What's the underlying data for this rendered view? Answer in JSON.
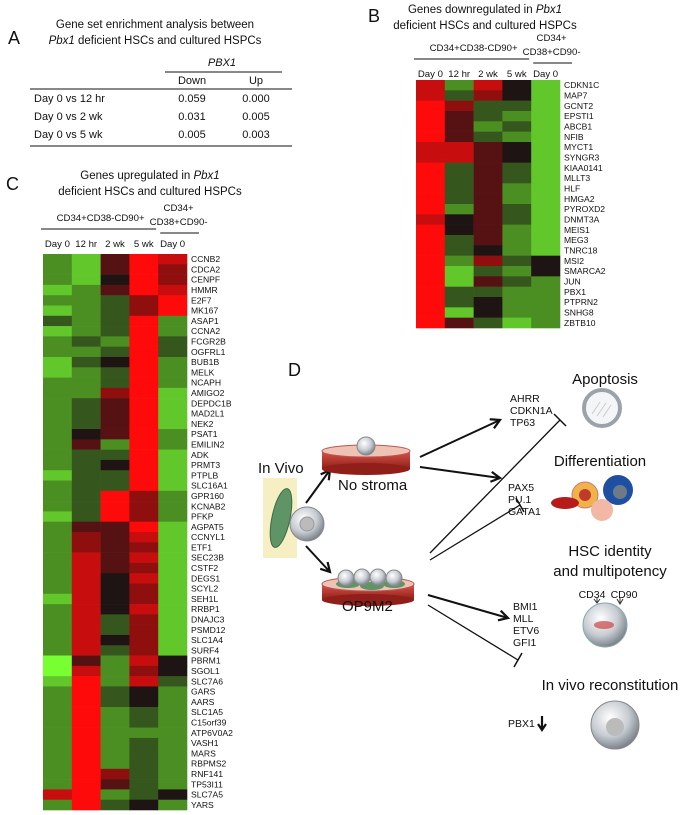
{
  "panel_a": {
    "label": "A",
    "title_line1": "Gene set enrichment analysis between",
    "title_italic": "Pbx1",
    "title_rest": "deficient HSCs and cultured HSPCs",
    "group_header": "PBX1",
    "columns": [
      "Down",
      "Up"
    ],
    "rows": [
      {
        "label": "Day 0 vs 12 hr",
        "values": [
          "0.059",
          "0.000"
        ]
      },
      {
        "label": "Day 0 vs 2 wk",
        "values": [
          "0.031",
          "0.005"
        ]
      },
      {
        "label": "Day 0 vs 5 wk",
        "values": [
          "0.005",
          "0.003"
        ]
      }
    ]
  },
  "panel_b": {
    "label": "B",
    "title_line1_prefix": "Genes downregulated in",
    "title_italic": "Pbx1",
    "title_line2": "deficient HSCs and cultured HSPCs",
    "group1": "CD34+CD38-CD90+",
    "group2_line1": "CD34+",
    "group2_line2": "CD38+CD90-",
    "columns": [
      "Day 0",
      "12 hr",
      "2 wk",
      "5 wk",
      "Day 0"
    ],
    "genes": [
      "CDKN1C",
      "MAP7",
      "GCNT2",
      "EPSTI1",
      "ABCB1",
      "NFIB",
      "MYCT1",
      "SYNGR3",
      "KIAA0141",
      "MLLT3",
      "HLF",
      "HMGA2",
      "PYROXD2",
      "DNMT3A",
      "MEIS1",
      "MEG3",
      "TNRC18",
      "MSI2",
      "SMARCA2",
      "JUN",
      "PBX1",
      "PTPRN2",
      "SNHG8",
      "ZBTB10"
    ],
    "values": [
      [
        1.5,
        -1,
        1.5,
        0,
        -1.5
      ],
      [
        1.5,
        -0.5,
        1,
        0,
        -1.5
      ],
      [
        2,
        1,
        -0.5,
        -0.5,
        -1.5
      ],
      [
        2,
        0.5,
        -0.5,
        -1,
        -1.5
      ],
      [
        2,
        0.5,
        -1,
        -0.5,
        -1.5
      ],
      [
        2,
        0.5,
        -0.5,
        -1,
        -1.5
      ],
      [
        1.5,
        1.5,
        0.5,
        0,
        -1.5
      ],
      [
        1.5,
        1.5,
        0.5,
        0,
        -1.5
      ],
      [
        2,
        -0.5,
        0.5,
        -0.5,
        -1.5
      ],
      [
        2,
        -0.5,
        0.5,
        -0.5,
        -1.5
      ],
      [
        2,
        -0.5,
        0.5,
        -1,
        -1.5
      ],
      [
        2,
        -0.5,
        0.5,
        -1,
        -1.5
      ],
      [
        2,
        -1,
        0.5,
        -0.5,
        -1.5
      ],
      [
        1.5,
        0,
        0.5,
        -0.5,
        -1.5
      ],
      [
        2,
        0,
        0.5,
        -1,
        -1.5
      ],
      [
        2,
        -0.5,
        0.5,
        -1,
        -1.5
      ],
      [
        2,
        -0.5,
        0,
        -1,
        -1.5
      ],
      [
        2,
        -1,
        1,
        -0.5,
        0
      ],
      [
        2,
        -1.5,
        -0.5,
        -1,
        0
      ],
      [
        2,
        -1.5,
        0.5,
        -0.5,
        -1
      ],
      [
        2,
        -0.5,
        -0.5,
        -1,
        -1
      ],
      [
        2,
        -0.5,
        0,
        -1,
        -1
      ],
      [
        2,
        -1.5,
        0,
        -1,
        -1
      ],
      [
        2,
        0.5,
        -0.5,
        -1.5,
        -1
      ]
    ]
  },
  "panel_c": {
    "label": "C",
    "title_line1_prefix": "Genes upregulated in",
    "title_italic": "Pbx1",
    "title_line2": "deficient HSCs and cultured HSPCs",
    "group1": "CD34+CD38-CD90+",
    "group2_line1": "CD34+",
    "group2_line2": "CD38+CD90-",
    "columns": [
      "Day 0",
      "12 hr",
      "2 wk",
      "5 wk",
      "Day 0"
    ],
    "genes": [
      "CCNB2",
      "CDCA2",
      "CENPF",
      "HMMR",
      "E2F7",
      "MK167",
      "ASAP1",
      "CCNA2",
      "FCGR2B",
      "OGFRL1",
      "BUB1B",
      "MELK",
      "NCAPH",
      "AMIGO2",
      "DEPDC1B",
      "MAD2L1",
      "NEK2",
      "PSAT1",
      "EMILIN2",
      "ADK",
      "PRMT3",
      "PTPLB",
      "SLC16A1",
      "GPR160",
      "KCNAB2",
      "PFKP",
      "AGPAT5",
      "CCNYL1",
      "ETF1",
      "SEC23B",
      "CSTF2",
      "DEGS1",
      "SCYL2",
      "SEH1L",
      "RRBP1",
      "DNAJC3",
      "PSMD12",
      "SLC1A4",
      "SURF4",
      "PBRM1",
      "SGOL1",
      "SLC7A6",
      "GARS",
      "AARS",
      "SLC1A5",
      "C15orf39",
      "ATP6V0A2",
      "VASH1",
      "MARS",
      "RBPMS2",
      "RNF141",
      "TP53I11",
      "SLC7A5",
      "YARS"
    ],
    "values": [
      [
        -1,
        -1.5,
        0.5,
        2,
        1.5
      ],
      [
        -1,
        -1.5,
        0.5,
        2,
        1
      ],
      [
        -1,
        -1.5,
        0,
        2,
        1
      ],
      [
        -1.5,
        -1,
        0.5,
        2,
        1.5
      ],
      [
        -1,
        -1,
        -0.5,
        1,
        2
      ],
      [
        -1.5,
        -1,
        -0.5,
        1,
        2
      ],
      [
        -0.5,
        -1,
        -0.5,
        2,
        -1
      ],
      [
        -1.5,
        -1,
        -0.5,
        2,
        -1
      ],
      [
        -1,
        -0.5,
        -1,
        2,
        -0.5
      ],
      [
        -1,
        -1,
        -0.5,
        2,
        -0.5
      ],
      [
        -1.5,
        -0.5,
        0,
        2,
        -1
      ],
      [
        -1.5,
        -1,
        -0.5,
        2,
        -1
      ],
      [
        -1,
        -1,
        -0.5,
        2,
        -1
      ],
      [
        -1,
        -1,
        1,
        2,
        -1.5
      ],
      [
        -1,
        -0.5,
        0.5,
        2,
        -1.5
      ],
      [
        -1,
        -0.5,
        0.5,
        2,
        -1.5
      ],
      [
        -1,
        -0.5,
        0.5,
        2,
        -1.5
      ],
      [
        -1,
        0,
        0.5,
        2,
        -1
      ],
      [
        -1,
        0.5,
        -1,
        2,
        -1
      ],
      [
        -1,
        -0.5,
        -0.5,
        2,
        -1.5
      ],
      [
        -1,
        -0.5,
        0,
        2,
        -1.5
      ],
      [
        -1.5,
        -0.5,
        -0.5,
        2,
        -1.5
      ],
      [
        -1,
        -0.5,
        -0.5,
        2,
        -1.5
      ],
      [
        -1,
        -0.5,
        2,
        1,
        -1
      ],
      [
        -1,
        -0.5,
        2,
        1,
        -1
      ],
      [
        -1.5,
        -0.5,
        2,
        1,
        -1
      ],
      [
        -1,
        0.5,
        0.5,
        2,
        -1.5
      ],
      [
        -1,
        1,
        0.5,
        1.5,
        -1.5
      ],
      [
        -1,
        1,
        0.5,
        1,
        -1.5
      ],
      [
        -1,
        1.5,
        0.5,
        1.5,
        -1.5
      ],
      [
        -1,
        1.5,
        0.5,
        1,
        -1.5
      ],
      [
        -1,
        1.5,
        0,
        1.5,
        -1.5
      ],
      [
        -1,
        1.5,
        0,
        1,
        -1.5
      ],
      [
        -1.5,
        1.5,
        0,
        1,
        -1.5
      ],
      [
        -1,
        1.5,
        0,
        1.5,
        -1.5
      ],
      [
        -1,
        1.5,
        -0.5,
        1,
        -1.5
      ],
      [
        -1,
        1.5,
        -0.5,
        1,
        -1.5
      ],
      [
        -1,
        1.5,
        0,
        1,
        -1.5
      ],
      [
        -1,
        1.5,
        -0.5,
        1,
        -1.5
      ],
      [
        -2,
        0.5,
        -1,
        1.5,
        0
      ],
      [
        -2,
        1.5,
        -1,
        1,
        0
      ],
      [
        -1.5,
        2,
        -1,
        1.5,
        -0.5
      ],
      [
        -1,
        2,
        -0.5,
        0,
        -1
      ],
      [
        -1,
        2,
        -0.5,
        0,
        -1
      ],
      [
        -1,
        2,
        -1,
        -0.5,
        -1
      ],
      [
        -1,
        2,
        -1,
        -0.5,
        -1
      ],
      [
        -1,
        2,
        -1,
        -1,
        -1
      ],
      [
        -1,
        2,
        -1,
        -0.5,
        -1
      ],
      [
        -1,
        2,
        -1,
        -0.5,
        -1
      ],
      [
        -1,
        2,
        -1,
        -0.5,
        -1
      ],
      [
        -1,
        2,
        1,
        -0.5,
        -1
      ],
      [
        -1,
        2,
        0.5,
        -0.5,
        -1
      ],
      [
        1.5,
        2,
        -1,
        -0.5,
        0
      ],
      [
        -1,
        2,
        -0.5,
        0,
        -1
      ]
    ]
  },
  "panel_d": {
    "label": "D",
    "in_vivo": "In Vivo",
    "no_stroma": "No stroma",
    "op9m2": "OP9M2",
    "apoptosis": {
      "title": "Apoptosis",
      "genes": [
        "AHRR",
        "CDKN1A",
        "TP63"
      ]
    },
    "differentiation": {
      "title": "Differentiation",
      "genes": [
        "PAX5",
        "PU.1",
        "GATA1"
      ]
    },
    "hsc": {
      "title_line1": "HSC identity",
      "title_line2": "and multipotency",
      "markers": [
        "CD34",
        "CD90"
      ],
      "genes": [
        "BMI1",
        "MLL",
        "ETV6",
        "GFI1"
      ]
    },
    "reconstitution": {
      "title": "In vivo reconstitution",
      "gene": "PBX1"
    }
  }
}
